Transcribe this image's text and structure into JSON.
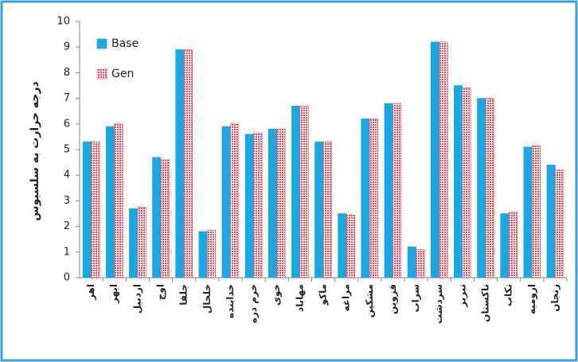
{
  "chart_data": {
    "type": "bar",
    "y_label": "درجه حرارت به سلسیوس",
    "categories": [
      "اهر",
      "ابهر",
      "اردبیل",
      "اوج",
      "جلفا",
      "خلخال",
      "خدابنده",
      "خرم دره",
      "خوی",
      "مهاباد",
      "ماکو",
      "مراغه",
      "مشکین",
      "قزوین",
      "سراب",
      "سردشت",
      "تبریز",
      "تاکستان",
      "تکاب",
      "ارومیه",
      "زنجان"
    ],
    "series": [
      {
        "name": "Base",
        "color": "#1aa7e2",
        "values": [
          5.3,
          5.9,
          2.7,
          4.7,
          8.9,
          1.8,
          5.9,
          5.6,
          5.8,
          6.7,
          5.3,
          2.5,
          6.2,
          6.8,
          1.2,
          9.2,
          7.5,
          7.0,
          2.5,
          5.1,
          4.4
        ]
      },
      {
        "name": "Gen",
        "color": "#f04a5a",
        "values": [
          5.3,
          6.0,
          2.75,
          4.6,
          8.9,
          1.85,
          6.0,
          5.65,
          5.8,
          6.7,
          5.3,
          2.45,
          6.2,
          6.8,
          1.1,
          9.2,
          7.4,
          7.0,
          2.55,
          5.15,
          4.2
        ]
      }
    ],
    "ylim": [
      0,
      10
    ],
    "yticks": [
      0,
      1,
      2,
      3,
      4,
      5,
      6,
      7,
      8,
      9,
      10
    ],
    "legend": "top-left"
  }
}
